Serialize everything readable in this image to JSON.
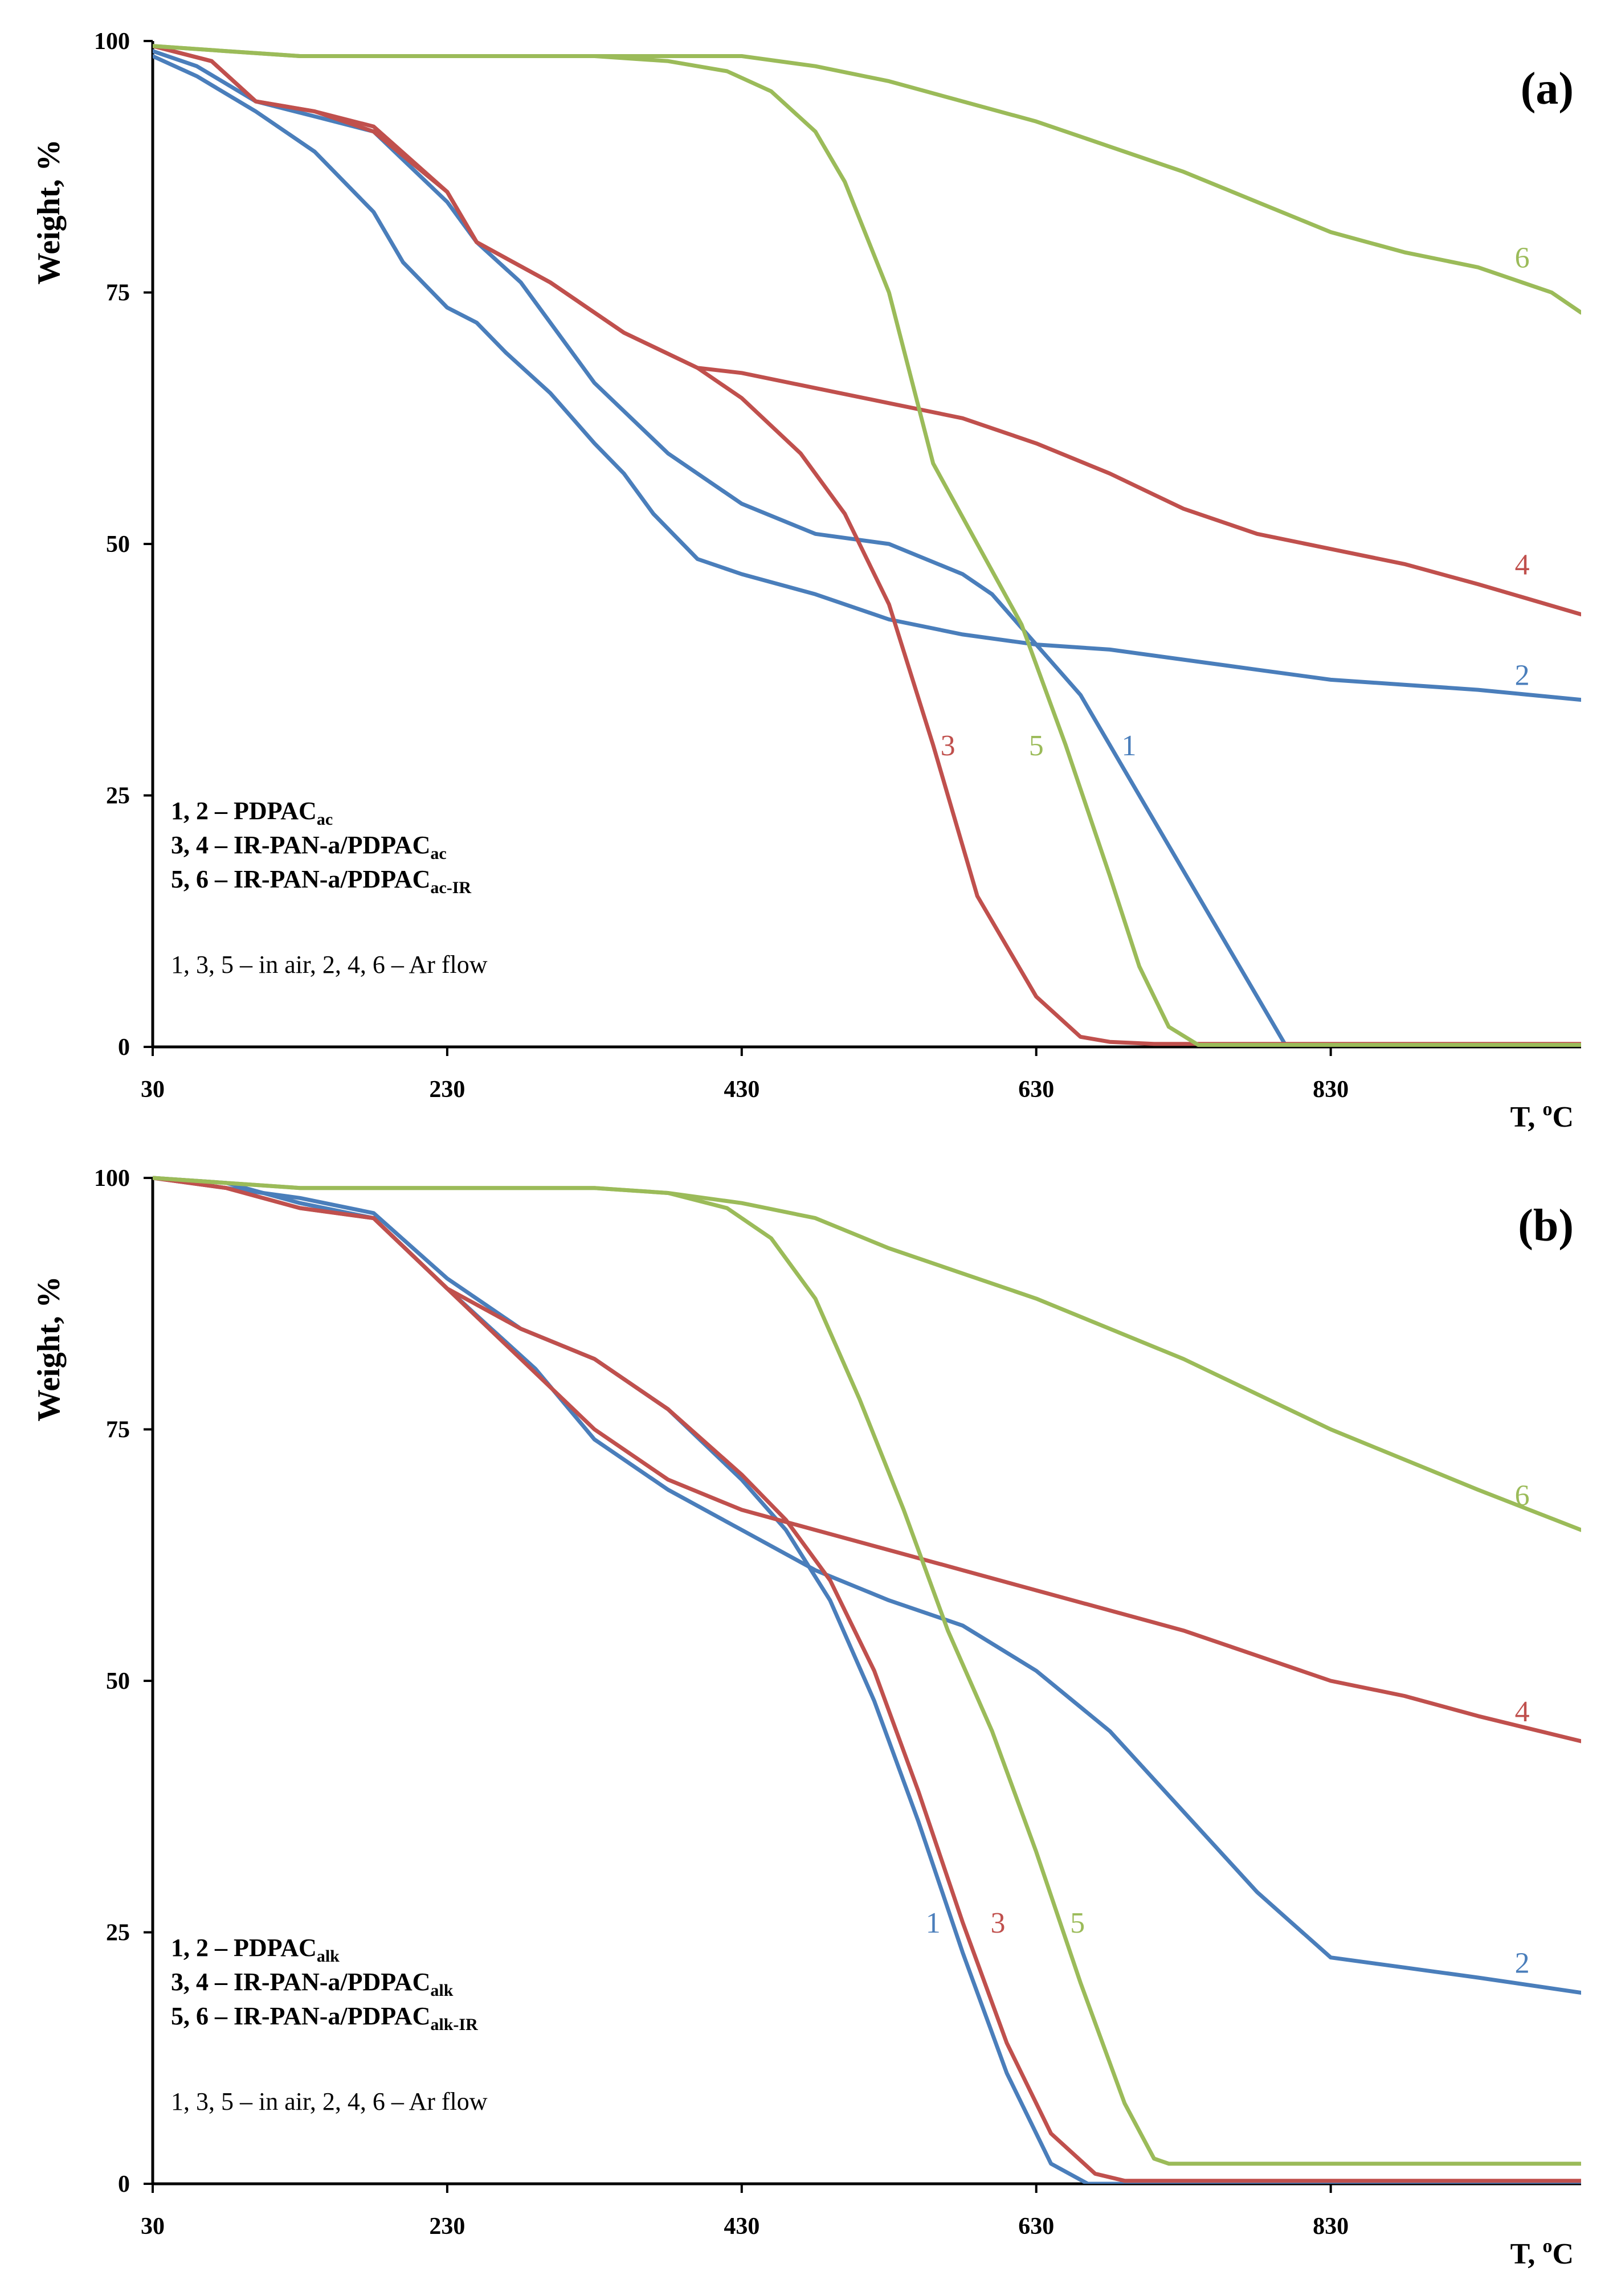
{
  "chart_data": [
    {
      "type": "line",
      "panel_label": "(a)",
      "xlabel_main": "T, ",
      "xlabel_sup": "o",
      "xlabel_unit": "C",
      "ylabel": "Weight, %",
      "xlim": [
        30,
        1000
      ],
      "ylim": [
        0,
        100
      ],
      "xticks": [
        30,
        230,
        430,
        630,
        830
      ],
      "yticks": [
        0,
        25,
        50,
        75,
        100
      ],
      "grid": false,
      "legend": {
        "lines": [
          {
            "main": "1, 2 – PDPAC",
            "sub": "ac"
          },
          {
            "main": "3, 4 – IR-PAN-a/PDPAC",
            "sub": "ac"
          },
          {
            "main": "5, 6 – IR-PAN-a/PDPAC",
            "sub": "ac-IR"
          }
        ],
        "note": "1, 3, 5 – in air, 2, 4, 6 – Ar flow"
      },
      "series": [
        {
          "name": "1",
          "color": "#4a7ebb",
          "label_x": 693,
          "label_y": 30,
          "x": [
            30,
            60,
            100,
            140,
            180,
            230,
            250,
            280,
            330,
            380,
            430,
            480,
            530,
            580,
            600,
            630,
            660,
            700,
            740,
            780,
            800,
            850,
            1000
          ],
          "y": [
            99,
            97.5,
            94,
            92.5,
            91,
            84,
            80,
            76,
            66,
            59,
            54,
            51,
            50,
            47,
            45,
            40,
            35,
            25,
            15,
            5,
            0,
            0,
            0
          ]
        },
        {
          "name": "2",
          "color": "#4a7ebb",
          "label_x": 960,
          "label_y": 37,
          "x": [
            30,
            60,
            100,
            140,
            180,
            200,
            230,
            250,
            270,
            300,
            330,
            350,
            370,
            400,
            430,
            480,
            530,
            580,
            630,
            680,
            730,
            780,
            830,
            880,
            930,
            1000
          ],
          "y": [
            98.5,
            96.5,
            93,
            89,
            83,
            78,
            73.5,
            72,
            69,
            65,
            60,
            57,
            53,
            48.5,
            47,
            45,
            42.5,
            41,
            40,
            39.5,
            38.5,
            37.5,
            36.5,
            36,
            35.5,
            34.5
          ]
        },
        {
          "name": "3",
          "color": "#c0504d",
          "label_x": 570,
          "label_y": 30,
          "x": [
            30,
            70,
            100,
            140,
            180,
            230,
            250,
            300,
            350,
            400,
            430,
            470,
            500,
            530,
            560,
            590,
            630,
            660,
            680,
            710,
            1000
          ],
          "y": [
            99.5,
            98,
            94,
            93,
            91,
            85,
            80,
            76,
            71,
            67.5,
            64.5,
            59,
            53,
            44,
            30,
            15,
            5,
            1,
            0.5,
            0.3,
            0.3
          ]
        },
        {
          "name": "4",
          "color": "#c0504d",
          "label_x": 960,
          "label_y": 48,
          "x": [
            30,
            70,
            100,
            140,
            180,
            230,
            250,
            300,
            350,
            400,
            430,
            480,
            530,
            580,
            630,
            680,
            730,
            780,
            830,
            880,
            930,
            1000
          ],
          "y": [
            99.5,
            98,
            94,
            93,
            91.5,
            85,
            80,
            76,
            71,
            67.5,
            67,
            65.5,
            64,
            62.5,
            60,
            57,
            53.5,
            51,
            49.5,
            48,
            46,
            43
          ]
        },
        {
          "name": "5",
          "color": "#9bbb59",
          "label_x": 630,
          "label_y": 30,
          "x": [
            30,
            80,
            130,
            230,
            330,
            380,
            420,
            450,
            480,
            500,
            530,
            560,
            590,
            620,
            650,
            680,
            700,
            720,
            740,
            760,
            1000
          ],
          "y": [
            99.5,
            99,
            98.5,
            98.5,
            98.5,
            98,
            97,
            95,
            91,
            86,
            75,
            58,
            50,
            42,
            30,
            17,
            8,
            2,
            0.2,
            0.2,
            0.2
          ]
        },
        {
          "name": "6",
          "color": "#9bbb59",
          "label_x": 960,
          "label_y": 78.5,
          "x": [
            30,
            80,
            130,
            230,
            330,
            430,
            480,
            530,
            580,
            630,
            680,
            730,
            780,
            830,
            880,
            930,
            980,
            1000
          ],
          "y": [
            99.5,
            99,
            98.5,
            98.5,
            98.5,
            98.5,
            97.5,
            96,
            94,
            92,
            89.5,
            87,
            84,
            81,
            79,
            77.5,
            75,
            73
          ]
        }
      ]
    },
    {
      "type": "line",
      "panel_label": "(b)",
      "xlabel_main": "T, ",
      "xlabel_sup": "o",
      "xlabel_unit": "C",
      "ylabel": "Weight, %",
      "xlim": [
        30,
        1000
      ],
      "ylim": [
        0,
        100
      ],
      "xticks": [
        30,
        230,
        430,
        630,
        830
      ],
      "yticks": [
        0,
        25,
        50,
        75,
        100
      ],
      "grid": false,
      "legend": {
        "lines": [
          {
            "main": "1, 2 – PDPAC",
            "sub": "alk"
          },
          {
            "main": "3, 4 – IR-PAN-a/PDPAC",
            "sub": "alk"
          },
          {
            "main": "5, 6 – IR-PAN-a/PDPAC",
            "sub": "alk-IR"
          }
        ],
        "note": "1, 3, 5 – in air, 2, 4, 6 – Ar flow"
      },
      "series": [
        {
          "name": "1",
          "color": "#4a7ebb",
          "label_x": 560,
          "label_y": 26,
          "x": [
            30,
            80,
            130,
            180,
            230,
            280,
            330,
            380,
            430,
            460,
            490,
            520,
            550,
            580,
            610,
            640,
            665,
            1000
          ],
          "y": [
            100,
            99,
            98,
            96.5,
            90,
            85,
            82,
            77,
            70,
            65,
            58,
            48,
            36,
            23,
            11,
            2,
            0,
            0
          ]
        },
        {
          "name": "2",
          "color": "#4a7ebb",
          "label_x": 960,
          "label_y": 22,
          "x": [
            30,
            80,
            130,
            180,
            230,
            260,
            290,
            330,
            380,
            430,
            480,
            530,
            580,
            630,
            680,
            730,
            780,
            830,
            880,
            930,
            1000
          ],
          "y": [
            100,
            99.5,
            97.5,
            96,
            89,
            85,
            81,
            74,
            69,
            65,
            61,
            58,
            55.5,
            51,
            45,
            37,
            29,
            22.5,
            21.5,
            20.5,
            19
          ]
        },
        {
          "name": "3",
          "color": "#c0504d",
          "label_x": 604,
          "label_y": 26,
          "x": [
            30,
            80,
            130,
            180,
            230,
            280,
            330,
            380,
            430,
            460,
            490,
            520,
            550,
            580,
            610,
            640,
            670,
            690,
            1000
          ],
          "y": [
            100,
            99,
            97,
            96,
            89,
            85,
            82,
            77,
            70.5,
            66,
            60,
            51,
            39,
            26,
            14,
            5,
            1,
            0.3,
            0.3
          ]
        },
        {
          "name": "4",
          "color": "#c0504d",
          "label_x": 960,
          "label_y": 47,
          "x": [
            30,
            80,
            130,
            180,
            230,
            280,
            330,
            380,
            430,
            480,
            530,
            580,
            630,
            680,
            730,
            780,
            830,
            880,
            930,
            1000
          ],
          "y": [
            100,
            99,
            97,
            96,
            89,
            82,
            75,
            70,
            67,
            65,
            63,
            61,
            59,
            57,
            55,
            52.5,
            50,
            48.5,
            46.5,
            44
          ]
        },
        {
          "name": "5",
          "color": "#9bbb59",
          "label_x": 658,
          "label_y": 26,
          "x": [
            30,
            130,
            230,
            330,
            380,
            420,
            450,
            480,
            510,
            540,
            570,
            600,
            630,
            660,
            690,
            710,
            720,
            740,
            1000
          ],
          "y": [
            100,
            99,
            99,
            99,
            98.5,
            97,
            94,
            88,
            78,
            67,
            55,
            45,
            33,
            20,
            8,
            2.5,
            2,
            2,
            2
          ]
        },
        {
          "name": "6",
          "color": "#9bbb59",
          "label_x": 960,
          "label_y": 68.5,
          "x": [
            30,
            130,
            230,
            330,
            380,
            430,
            480,
            530,
            580,
            630,
            680,
            730,
            780,
            830,
            880,
            930,
            1000
          ],
          "y": [
            100,
            99,
            99,
            99,
            98.5,
            97.5,
            96,
            93,
            90.5,
            88,
            85,
            82,
            78.5,
            75,
            72,
            69,
            65
          ]
        }
      ]
    }
  ]
}
